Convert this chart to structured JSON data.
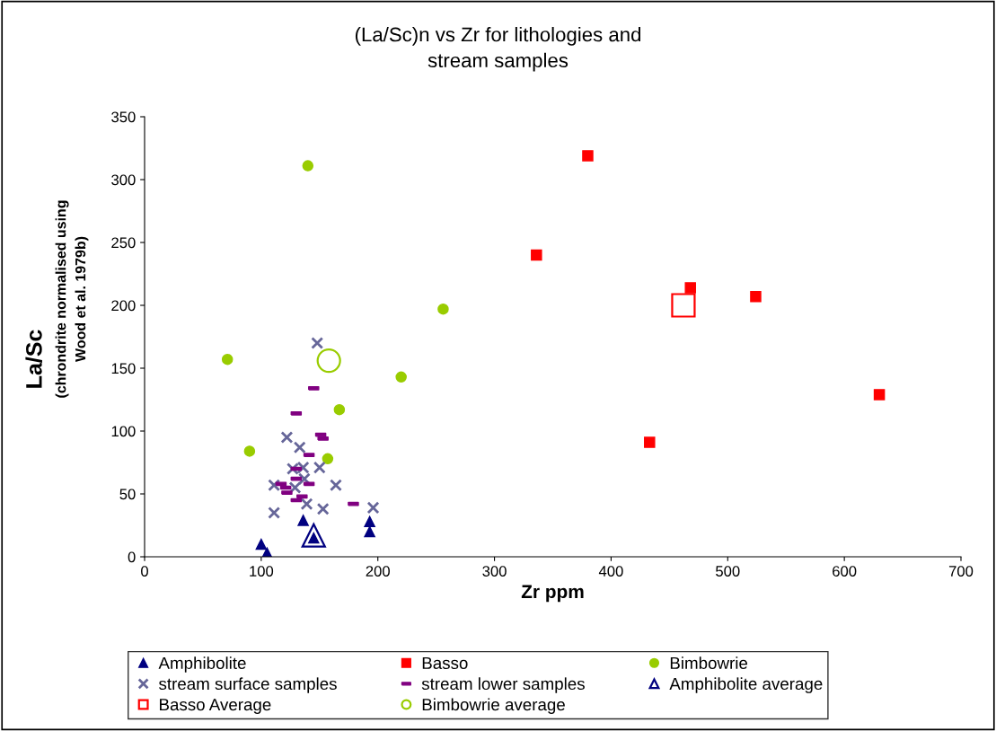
{
  "chart_data": {
    "type": "scatter",
    "title": "(La/Sc)n vs Zr for lithologies and\nstream samples",
    "xlabel": "Zr ppm",
    "ylabel": "La/Sc (chrondrite normalised using Wood et al. 1979b)",
    "xlim": [
      0,
      700
    ],
    "xticks": [
      0,
      100,
      200,
      300,
      400,
      500,
      600,
      700
    ],
    "ylim": [
      0,
      350
    ],
    "yticks": [
      0,
      50,
      100,
      150,
      200,
      250,
      300,
      350
    ],
    "grid": false,
    "legend": "bottom",
    "series": [
      {
        "name": "Amphibolite",
        "color": "#000080",
        "marker": "triangle",
        "x": [
          100,
          105,
          136,
          193,
          193,
          145
        ],
        "values": [
          10,
          3,
          29,
          28,
          20,
          15
        ]
      },
      {
        "name": "Basso",
        "color": "#ff0000",
        "marker": "square",
        "x": [
          380,
          336,
          468,
          524,
          630,
          433
        ],
        "values": [
          319,
          240,
          214,
          207,
          129,
          91
        ]
      },
      {
        "name": "Bimbowrie",
        "color": "#99cc00",
        "marker": "circle",
        "x": [
          140,
          256,
          71,
          220,
          167,
          90,
          157
        ],
        "values": [
          311,
          197,
          157,
          143,
          117,
          84,
          78
        ]
      },
      {
        "name": "stream surface samples",
        "color": "#666699",
        "marker": "cross",
        "x": [
          148,
          122,
          133,
          127,
          136,
          150,
          137,
          111,
          129,
          164,
          139,
          153,
          111,
          196
        ],
        "values": [
          170,
          95,
          87,
          70,
          71,
          71,
          62,
          57,
          55,
          57,
          42,
          38,
          35,
          39
        ]
      },
      {
        "name": "stream lower samples",
        "color": "#800080",
        "marker": "square",
        "x": [
          145,
          130,
          151,
          153,
          141,
          130,
          130,
          141,
          117,
          121,
          122,
          135,
          130,
          179
        ],
        "values": [
          134,
          114,
          97,
          94,
          81,
          70,
          62,
          58,
          58,
          55,
          51,
          48,
          45,
          42
        ]
      },
      {
        "name": "Amphibolite average",
        "color": "#000080",
        "marker": "triangle",
        "x": [
          145
        ],
        "values": [
          17
        ]
      },
      {
        "name": "Basso Average",
        "color": "#ff0000",
        "marker": "square",
        "x": [
          462
        ],
        "values": [
          200
        ]
      },
      {
        "name": "Bimbowrie average",
        "color": "#99cc00",
        "marker": "circle",
        "x": [
          158
        ],
        "values": [
          156
        ]
      }
    ]
  }
}
